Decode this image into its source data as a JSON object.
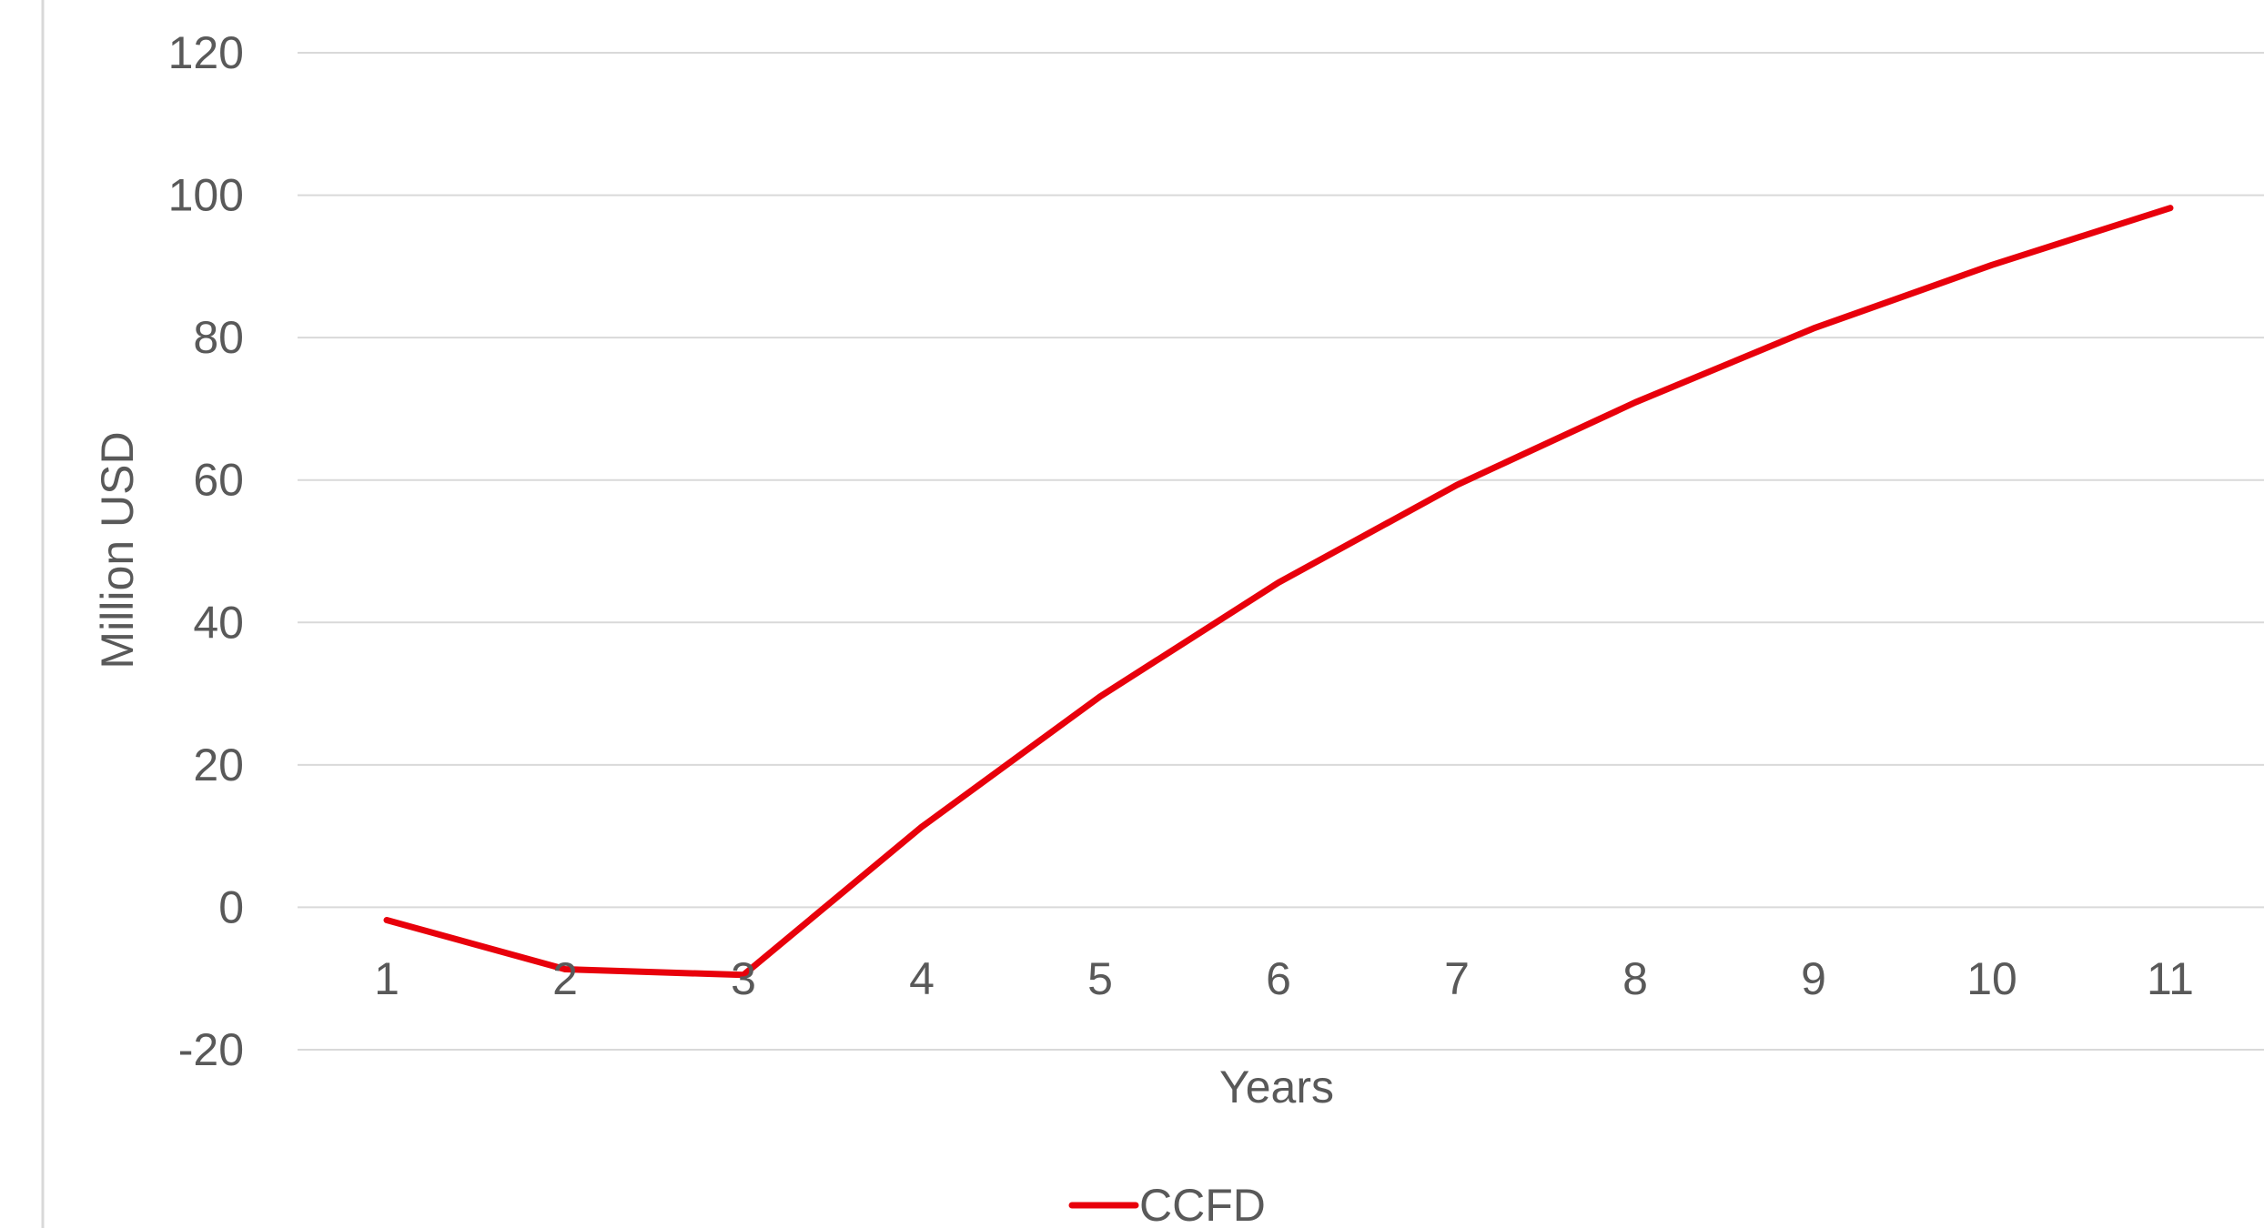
{
  "chart_data": {
    "type": "line",
    "title": "",
    "xlabel": "Years",
    "ylabel": "Million USD",
    "x": [
      "1",
      "2",
      "3",
      "4",
      "5",
      "6",
      "7",
      "8",
      "9",
      "10",
      "11"
    ],
    "y_ticks": [
      "120",
      "100",
      "80",
      "60",
      "40",
      "20",
      "0",
      "-20"
    ],
    "ylim": [
      -20,
      120
    ],
    "grid": true,
    "legend_position": "bottom",
    "series": [
      {
        "name": "CCFD",
        "color": "#e8000b",
        "values": [
          -1.8,
          -8.7,
          -9.5,
          11.3,
          29.6,
          45.6,
          59.3,
          70.9,
          81.3,
          90.2,
          98.2
        ]
      }
    ]
  }
}
